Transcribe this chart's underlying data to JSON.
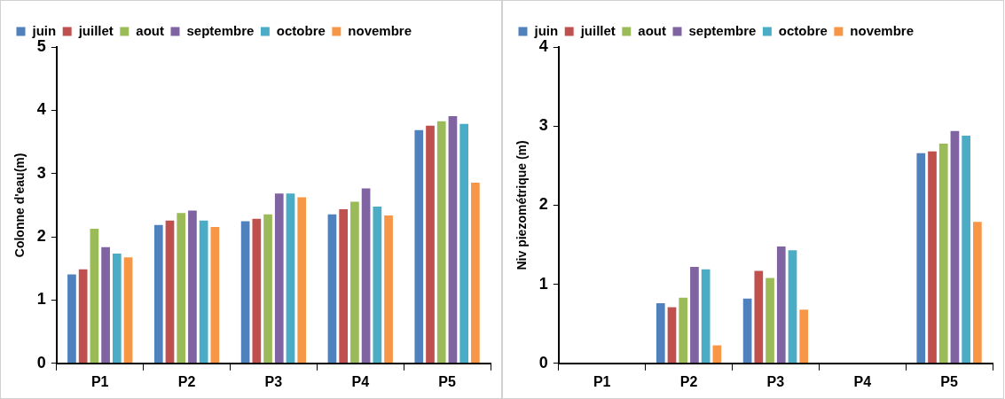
{
  "chart_data": [
    {
      "type": "bar",
      "ylabel": "Colonne d'eau(m)",
      "categories": [
        "P1",
        "P2",
        "P3",
        "P4",
        "P5"
      ],
      "ylim": [
        0,
        5
      ],
      "yticks": [
        0,
        1,
        2,
        3,
        4,
        5
      ],
      "grid": false,
      "legend": "top",
      "series": [
        {
          "name": "juin",
          "color": "#4f81bd",
          "values": [
            1.42,
            2.2,
            2.26,
            2.37,
            3.7
          ]
        },
        {
          "name": "juillet",
          "color": "#c0504d",
          "values": [
            1.5,
            2.27,
            2.3,
            2.45,
            3.77
          ]
        },
        {
          "name": "aout",
          "color": "#9bbb59",
          "values": [
            2.14,
            2.39,
            2.37,
            2.57,
            3.84
          ]
        },
        {
          "name": "septembre",
          "color": "#8064a2",
          "values": [
            1.85,
            2.43,
            2.7,
            2.78,
            3.92
          ]
        },
        {
          "name": "octobre",
          "color": "#4bacc6",
          "values": [
            1.75,
            2.27,
            2.7,
            2.49,
            3.8
          ]
        },
        {
          "name": "novembre",
          "color": "#f79646",
          "values": [
            1.69,
            2.17,
            2.64,
            2.35,
            2.87
          ]
        }
      ]
    },
    {
      "type": "bar",
      "ylabel": "Niv piezométrique (m)",
      "categories": [
        "P1",
        "P2",
        "P3",
        "P4",
        "P5"
      ],
      "ylim": [
        0,
        4
      ],
      "yticks": [
        0,
        1,
        2,
        3,
        4
      ],
      "grid": false,
      "legend": "top",
      "series": [
        {
          "name": "juin",
          "color": "#4f81bd",
          "values": [
            null,
            0.77,
            0.83,
            null,
            2.67
          ]
        },
        {
          "name": "juillet",
          "color": "#c0504d",
          "values": [
            null,
            0.72,
            1.18,
            null,
            2.69
          ]
        },
        {
          "name": "aout",
          "color": "#9bbb59",
          "values": [
            null,
            0.84,
            1.09,
            null,
            2.79
          ]
        },
        {
          "name": "septembre",
          "color": "#8064a2",
          "values": [
            null,
            1.23,
            1.49,
            null,
            2.95
          ]
        },
        {
          "name": "octobre",
          "color": "#4bacc6",
          "values": [
            null,
            1.2,
            1.44,
            null,
            2.89
          ]
        },
        {
          "name": "novembre",
          "color": "#f79646",
          "values": [
            null,
            0.24,
            0.69,
            null,
            1.8
          ]
        }
      ]
    }
  ]
}
